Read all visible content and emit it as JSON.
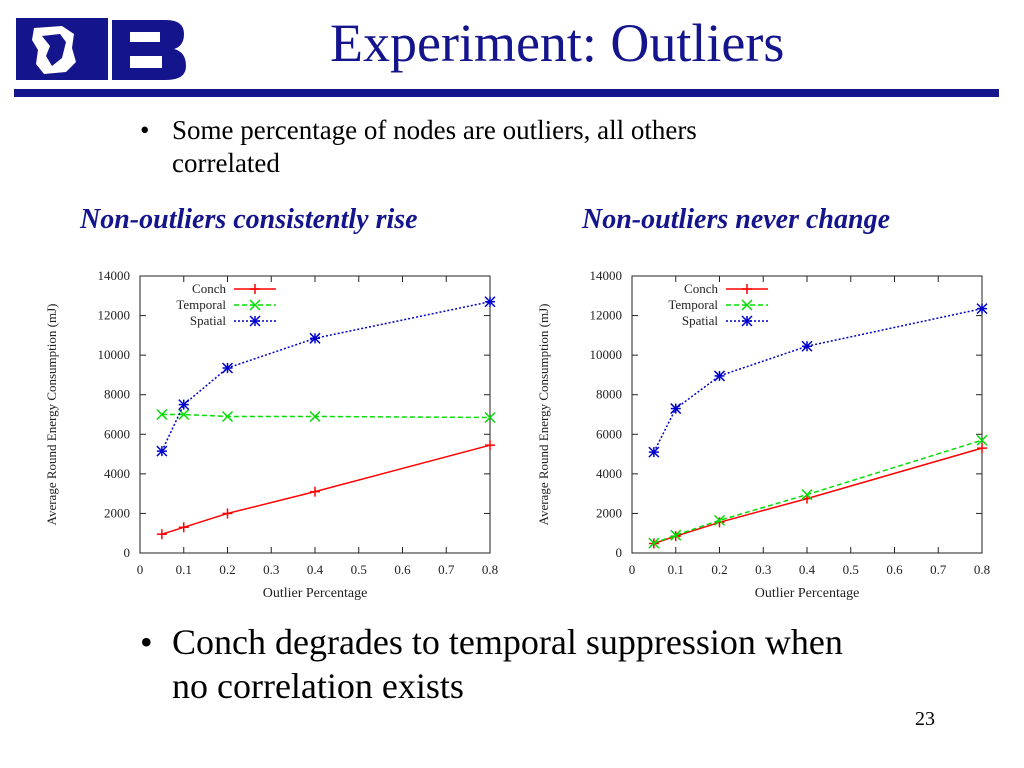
{
  "slide": {
    "title": "Experiment: Outliers",
    "bullets": [
      "Some percentage of nodes are outliers, all others\ncorrelated",
      "Conch degrades to temporal suppression when\nno correlation exists"
    ],
    "bullet_symbol": "•",
    "captions": [
      "Non-outliers consistently rise",
      "Non-outliers never change"
    ],
    "page_number": "23",
    "logo": {
      "icon": "duke-blue-devil-logo",
      "text": "DB"
    }
  },
  "colors": {
    "title": "#14148c",
    "conch": "#ff0000",
    "temporal": "#00dd00",
    "spatial": "#0000cc"
  },
  "chart_data": [
    {
      "type": "line",
      "title": "",
      "xlabel": "Outlier Percentage",
      "ylabel": "Average Round Energy Consumption (mJ)",
      "xlim": [
        0,
        0.8
      ],
      "ylim": [
        0,
        14000
      ],
      "xticks": [
        0,
        0.1,
        0.2,
        0.3,
        0.4,
        0.5,
        0.6,
        0.7,
        0.8
      ],
      "yticks": [
        0,
        2000,
        4000,
        6000,
        8000,
        10000,
        12000,
        14000
      ],
      "legend": "top-left",
      "grid": false,
      "series": [
        {
          "name": "Conch",
          "marker": "plus",
          "line": "solid",
          "x": [
            0.05,
            0.1,
            0.2,
            0.4,
            0.8
          ],
          "y": [
            950,
            1300,
            2000,
            3100,
            5450
          ]
        },
        {
          "name": "Temporal",
          "marker": "x",
          "line": "dashed",
          "x": [
            0.05,
            0.1,
            0.2,
            0.4,
            0.8
          ],
          "y": [
            7000,
            7000,
            6900,
            6900,
            6850
          ]
        },
        {
          "name": "Spatial",
          "marker": "star",
          "line": "dotted",
          "x": [
            0.05,
            0.1,
            0.2,
            0.4,
            0.8
          ],
          "y": [
            5150,
            7500,
            9350,
            10850,
            12700
          ]
        }
      ]
    },
    {
      "type": "line",
      "title": "",
      "xlabel": "Outlier Percentage",
      "ylabel": "Average Round Energy Consumption (mJ)",
      "xlim": [
        0,
        0.8
      ],
      "ylim": [
        0,
        14000
      ],
      "xticks": [
        0,
        0.1,
        0.2,
        0.3,
        0.4,
        0.5,
        0.6,
        0.7,
        0.8
      ],
      "yticks": [
        0,
        2000,
        4000,
        6000,
        8000,
        10000,
        12000,
        14000
      ],
      "legend": "top-left",
      "grid": false,
      "series": [
        {
          "name": "Conch",
          "marker": "plus",
          "line": "solid",
          "x": [
            0.05,
            0.1,
            0.2,
            0.4,
            0.8
          ],
          "y": [
            480,
            850,
            1550,
            2750,
            5300
          ]
        },
        {
          "name": "Temporal",
          "marker": "x",
          "line": "dashed",
          "x": [
            0.05,
            0.1,
            0.2,
            0.4,
            0.8
          ],
          "y": [
            500,
            900,
            1650,
            2950,
            5700
          ]
        },
        {
          "name": "Spatial",
          "marker": "star",
          "line": "dotted",
          "x": [
            0.05,
            0.1,
            0.2,
            0.4,
            0.8
          ],
          "y": [
            5100,
            7300,
            8950,
            10450,
            12350
          ]
        }
      ]
    }
  ]
}
